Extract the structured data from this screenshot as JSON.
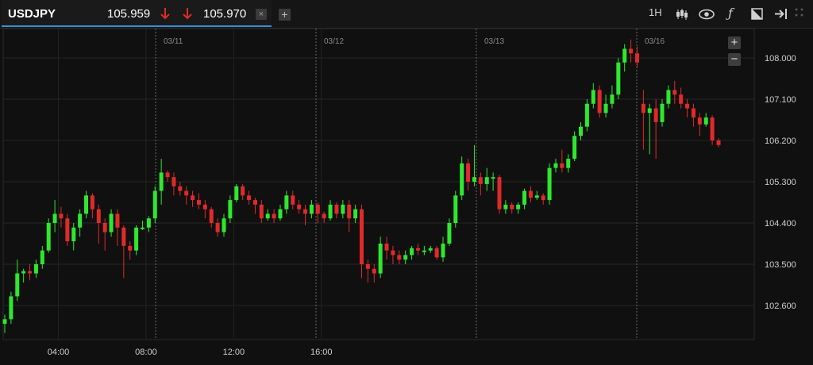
{
  "tab": {
    "symbol": "USDJPY",
    "bid": "105.959",
    "ask": "105.970",
    "close_label": "×",
    "bid_direction": "down",
    "ask_direction": "down",
    "direction_color": "#e02a2a"
  },
  "add_tab_label": "+",
  "toolbar": {
    "timeframe": "1H",
    "icons": [
      "candlestick-chart-icon",
      "eye-icon",
      "function-icon",
      "drawing-tool-icon",
      "logout-icon",
      "grid-dots-icon"
    ]
  },
  "zoom": {
    "in": "+",
    "out": "−"
  },
  "chart_data": {
    "type": "candlestick",
    "symbol": "USDJPY",
    "interval": "1H",
    "up_color": "#2ee82e",
    "down_color": "#e02a2a",
    "y_ticks": [
      "108.000",
      "107.100",
      "106.200",
      "105.300",
      "104.400",
      "103.500",
      "102.600"
    ],
    "x_ticks": [
      "04:00",
      "08:00",
      "12:00",
      "16:00"
    ],
    "date_markers": [
      "03/11",
      "03/12",
      "03/13",
      "03/16"
    ],
    "ylim": [
      102.0,
      108.5
    ],
    "grid": true,
    "candles": [
      [
        102.2,
        102.3,
        102.0,
        102.4
      ],
      [
        102.3,
        102.8,
        102.2,
        102.9
      ],
      [
        102.8,
        103.3,
        102.7,
        103.6
      ],
      [
        103.3,
        103.35,
        103.1,
        103.4
      ],
      [
        103.35,
        103.3,
        103.15,
        103.5
      ],
      [
        103.3,
        103.5,
        103.2,
        103.6
      ],
      [
        103.5,
        103.8,
        103.4,
        103.9
      ],
      [
        103.8,
        104.4,
        103.75,
        104.5
      ],
      [
        104.4,
        104.6,
        104.2,
        104.9
      ],
      [
        104.6,
        104.5,
        104.3,
        104.75
      ],
      [
        104.5,
        104.0,
        103.9,
        104.6
      ],
      [
        104.0,
        104.3,
        103.8,
        104.4
      ],
      [
        104.3,
        104.6,
        104.1,
        104.7
      ],
      [
        104.6,
        105.0,
        104.5,
        105.1
      ],
      [
        105.0,
        104.7,
        104.5,
        105.05
      ],
      [
        104.7,
        104.4,
        103.95,
        104.8
      ],
      [
        104.4,
        104.2,
        103.8,
        104.5
      ],
      [
        104.2,
        104.6,
        104.1,
        104.7
      ],
      [
        104.6,
        104.3,
        103.9,
        104.7
      ],
      [
        104.3,
        103.9,
        103.2,
        104.35
      ],
      [
        103.9,
        103.8,
        103.6,
        104.0
      ],
      [
        103.8,
        104.3,
        103.7,
        104.35
      ],
      [
        104.3,
        104.3,
        104.25,
        104.45
      ],
      [
        104.3,
        104.5,
        104.2,
        104.55
      ],
      [
        104.5,
        105.1,
        104.4,
        105.2
      ],
      [
        105.1,
        105.5,
        104.8,
        105.8
      ],
      [
        105.5,
        105.4,
        105.3,
        105.55
      ],
      [
        105.4,
        105.2,
        105.0,
        105.5
      ],
      [
        105.2,
        105.1,
        105.0,
        105.3
      ],
      [
        105.1,
        105.0,
        104.8,
        105.2
      ],
      [
        105.0,
        104.9,
        104.75,
        105.1
      ],
      [
        104.9,
        104.8,
        104.7,
        105.05
      ],
      [
        104.8,
        104.7,
        104.5,
        104.9
      ],
      [
        104.7,
        104.4,
        104.3,
        104.75
      ],
      [
        104.4,
        104.2,
        104.1,
        104.5
      ],
      [
        104.2,
        104.5,
        104.1,
        104.6
      ],
      [
        104.5,
        104.9,
        104.4,
        105.0
      ],
      [
        104.9,
        105.2,
        104.85,
        105.25
      ],
      [
        105.2,
        105.0,
        104.9,
        105.25
      ],
      [
        105.0,
        104.9,
        104.8,
        105.1
      ],
      [
        104.9,
        104.8,
        104.6,
        104.95
      ],
      [
        104.8,
        104.5,
        104.4,
        104.9
      ],
      [
        104.5,
        104.6,
        104.45,
        104.7
      ],
      [
        104.6,
        104.5,
        104.4,
        104.7
      ],
      [
        104.5,
        104.7,
        104.45,
        104.8
      ],
      [
        104.7,
        105.0,
        104.6,
        105.1
      ],
      [
        105.0,
        104.8,
        104.7,
        105.1
      ],
      [
        104.8,
        104.7,
        104.6,
        104.9
      ],
      [
        104.7,
        104.6,
        104.35,
        104.8
      ],
      [
        104.6,
        104.8,
        104.5,
        104.9
      ],
      [
        104.8,
        104.6,
        104.4,
        104.85
      ],
      [
        104.6,
        104.5,
        104.4,
        104.65
      ],
      [
        104.5,
        104.8,
        104.45,
        104.9
      ],
      [
        104.8,
        104.6,
        104.5,
        104.85
      ],
      [
        104.6,
        104.8,
        104.5,
        104.9
      ],
      [
        104.8,
        104.5,
        104.2,
        104.9
      ],
      [
        104.5,
        104.7,
        104.4,
        104.8
      ],
      [
        104.7,
        103.5,
        103.2,
        104.8
      ],
      [
        103.5,
        103.4,
        103.1,
        103.6
      ],
      [
        103.4,
        103.3,
        103.1,
        103.5
      ],
      [
        103.3,
        103.95,
        103.2,
        104.1
      ],
      [
        103.95,
        103.8,
        103.6,
        104.1
      ],
      [
        103.8,
        103.7,
        103.5,
        103.9
      ],
      [
        103.7,
        103.6,
        103.5,
        103.8
      ],
      [
        103.6,
        103.7,
        103.5,
        103.8
      ],
      [
        103.7,
        103.85,
        103.6,
        103.9
      ],
      [
        103.85,
        103.8,
        103.7,
        103.95
      ],
      [
        103.8,
        103.8,
        103.7,
        103.9
      ],
      [
        103.8,
        103.85,
        103.75,
        103.9
      ],
      [
        103.85,
        103.65,
        103.6,
        103.9
      ],
      [
        103.65,
        103.95,
        103.55,
        104.1
      ],
      [
        103.95,
        104.4,
        103.9,
        104.5
      ],
      [
        104.4,
        105.0,
        104.3,
        105.1
      ],
      [
        105.0,
        105.7,
        104.9,
        105.85
      ],
      [
        105.7,
        105.3,
        105.1,
        105.8
      ],
      [
        105.3,
        105.4,
        105.2,
        106.1
      ],
      [
        105.4,
        105.25,
        105.0,
        105.5
      ],
      [
        105.25,
        105.4,
        105.1,
        105.6
      ],
      [
        105.4,
        105.4,
        105.1,
        105.5
      ],
      [
        105.4,
        104.7,
        104.6,
        105.45
      ],
      [
        104.7,
        104.8,
        104.6,
        104.9
      ],
      [
        104.8,
        104.7,
        104.6,
        104.85
      ],
      [
        104.7,
        104.8,
        104.6,
        104.85
      ],
      [
        104.8,
        105.1,
        104.7,
        105.15
      ],
      [
        105.1,
        104.95,
        104.85,
        105.2
      ],
      [
        104.95,
        105.0,
        104.9,
        105.1
      ],
      [
        105.0,
        104.9,
        104.8,
        105.05
      ],
      [
        104.9,
        105.6,
        104.8,
        105.7
      ],
      [
        105.6,
        105.7,
        105.5,
        105.8
      ],
      [
        105.7,
        105.6,
        105.5,
        106.0
      ],
      [
        105.6,
        105.8,
        105.5,
        105.9
      ],
      [
        105.8,
        106.3,
        105.75,
        106.4
      ],
      [
        106.3,
        106.5,
        106.2,
        106.6
      ],
      [
        106.5,
        107.0,
        106.4,
        107.1
      ],
      [
        107.0,
        107.3,
        106.9,
        107.45
      ],
      [
        107.3,
        106.8,
        106.7,
        107.4
      ],
      [
        106.8,
        107.0,
        106.7,
        107.2
      ],
      [
        107.0,
        107.2,
        106.9,
        107.4
      ],
      [
        107.2,
        107.9,
        107.1,
        108.0
      ],
      [
        107.9,
        108.2,
        107.7,
        108.3
      ],
      [
        108.2,
        108.1,
        107.9,
        108.4
      ],
      [
        108.1,
        107.9,
        107.8,
        108.25
      ],
      [
        107.0,
        106.8,
        106.0,
        107.3
      ],
      [
        106.8,
        106.9,
        105.9,
        107.0
      ],
      [
        106.9,
        106.6,
        105.8,
        107.1
      ],
      [
        106.6,
        107.0,
        106.5,
        107.1
      ],
      [
        107.0,
        107.3,
        106.9,
        107.4
      ],
      [
        107.3,
        107.2,
        107.0,
        107.5
      ],
      [
        107.2,
        107.0,
        106.9,
        107.35
      ],
      [
        107.0,
        106.9,
        106.7,
        107.1
      ],
      [
        106.9,
        106.7,
        106.5,
        107.0
      ],
      [
        106.7,
        106.55,
        106.3,
        106.8
      ],
      [
        106.55,
        106.7,
        106.5,
        106.8
      ],
      [
        106.7,
        106.2,
        106.1,
        106.75
      ],
      [
        106.2,
        106.1,
        106.05,
        106.25
      ]
    ]
  }
}
